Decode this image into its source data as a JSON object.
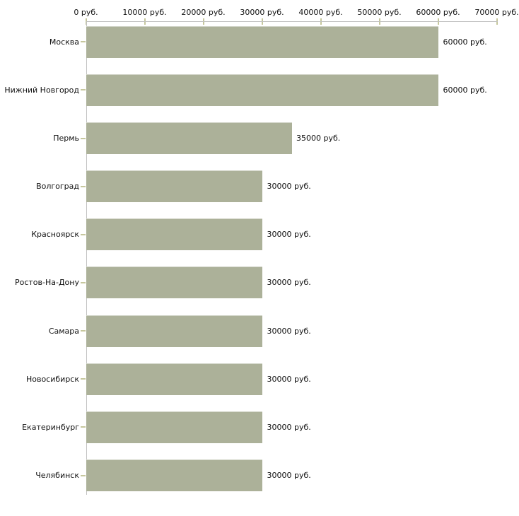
{
  "chart_data": {
    "type": "bar",
    "orientation": "horizontal",
    "title": "",
    "unit": "руб.",
    "categories": [
      "Москва",
      "Нижний Новгород",
      "Пермь",
      "Волгоград",
      "Красноярск",
      "Ростов-На-Дону",
      "Самара",
      "Новосибирск",
      "Екатеринбург",
      "Челябинск"
    ],
    "values": [
      60000,
      60000,
      35000,
      30000,
      30000,
      30000,
      30000,
      30000,
      30000,
      30000
    ],
    "value_labels": [
      "60000 руб.",
      "60000 руб.",
      "35000 руб.",
      "30000 руб.",
      "30000 руб.",
      "30000 руб.",
      "30000 руб.",
      "30000 руб.",
      "30000 руб.",
      "30000 руб."
    ],
    "x_axis": {
      "position": "top",
      "min": 0,
      "max": 70000,
      "tick_values": [
        0,
        10000,
        20000,
        30000,
        40000,
        50000,
        60000,
        70000
      ],
      "tick_labels": [
        "0 руб.",
        "10000 руб.",
        "20000 руб.",
        "30000 руб.",
        "40000 руб.",
        "50000 руб.",
        "60000 руб.",
        "70000 руб."
      ]
    },
    "grid": false,
    "legend": false,
    "colors": {
      "bar": "#acb199",
      "axis_line": "#c2c2c2",
      "tick_mark": "#c6c79d",
      "text": "#111111",
      "background": "#ffffff"
    }
  }
}
